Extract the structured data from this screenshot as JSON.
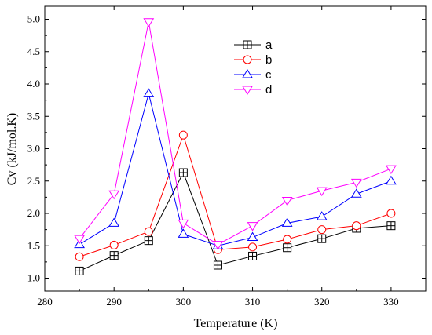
{
  "chart_data": {
    "type": "line",
    "title": "",
    "xlabel": "Temperature (K)",
    "ylabel": "Cv (kJ/mol.K)",
    "xlim": [
      280,
      335
    ],
    "ylim": [
      0.8,
      5.2
    ],
    "x_ticks": [
      280,
      290,
      300,
      310,
      320,
      330
    ],
    "y_ticks": [
      1.0,
      1.5,
      2.0,
      2.5,
      3.0,
      3.5,
      4.0,
      4.5,
      5.0
    ],
    "legend_position": "top-center",
    "x": [
      285,
      290,
      295,
      300,
      305,
      310,
      315,
      320,
      325,
      330
    ],
    "series": [
      {
        "name": "a",
        "color": "#000000",
        "marker": "square-plus",
        "values": [
          1.11,
          1.35,
          1.58,
          2.63,
          1.2,
          1.34,
          1.47,
          1.61,
          1.77,
          1.81
        ]
      },
      {
        "name": "b",
        "color": "#ff0000",
        "marker": "circle",
        "values": [
          1.33,
          1.51,
          1.72,
          3.21,
          1.44,
          1.48,
          1.6,
          1.75,
          1.81,
          2.0
        ]
      },
      {
        "name": "c",
        "color": "#0000ff",
        "marker": "triangle-up",
        "values": [
          1.52,
          1.85,
          3.85,
          1.68,
          1.5,
          1.63,
          1.85,
          1.95,
          2.3,
          2.5
        ]
      },
      {
        "name": "d",
        "color": "#ff00ff",
        "marker": "triangle-down",
        "values": [
          1.61,
          2.3,
          4.96,
          1.85,
          1.52,
          1.81,
          2.2,
          2.35,
          2.48,
          2.69
        ]
      }
    ]
  }
}
